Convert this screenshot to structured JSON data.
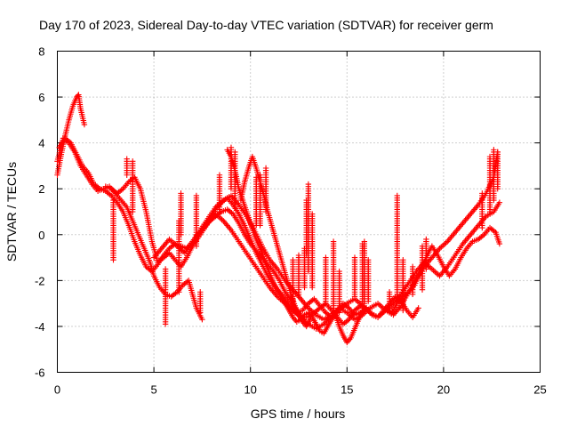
{
  "chart_data": {
    "type": "scatter",
    "title": "Day 170 of 2023, Sidereal Day-to-day VTEC variation (SDTVAR) for receiver germ",
    "xlabel": "GPS time / hours",
    "ylabel": "SDTVAR / TECUs",
    "xlim": [
      0,
      25
    ],
    "ylim": [
      -6,
      8
    ],
    "xticks": [
      0,
      5,
      10,
      15,
      20,
      25
    ],
    "yticks": [
      -6,
      -4,
      -2,
      0,
      2,
      4,
      6,
      8
    ],
    "grid": true,
    "marker": "+",
    "series": [
      {
        "name": "SDTVAR",
        "color": "#ff0000",
        "tracks": [
          {
            "x": [
              0.0,
              0.2,
              0.4,
              0.6,
              0.8,
              1.0,
              1.1,
              1.2,
              1.4
            ],
            "y": [
              2.6,
              3.5,
              4.3,
              5.0,
              5.6,
              6.0,
              6.1,
              5.5,
              4.8
            ]
          },
          {
            "x": [
              0.0,
              0.3,
              0.6,
              0.9,
              1.2,
              1.5,
              1.8,
              2.1,
              2.4,
              2.7,
              3.0,
              3.3,
              3.6,
              3.9,
              4.2,
              4.5,
              4.8,
              5.0,
              5.3,
              5.6,
              5.9,
              6.2,
              6.5,
              6.8,
              7.0,
              7.2,
              7.5
            ],
            "y": [
              3.2,
              4.2,
              4.0,
              3.6,
              3.0,
              2.6,
              2.2,
              1.9,
              2.0,
              2.1,
              1.8,
              1.5,
              1.2,
              0.6,
              0.0,
              -0.6,
              -1.2,
              -1.8,
              -2.3,
              -2.6,
              -2.7,
              -2.5,
              -2.2,
              -2.0,
              -2.6,
              -3.2,
              -3.7
            ]
          },
          {
            "x": [
              0.1,
              0.4,
              0.7,
              1.0,
              1.3,
              1.6,
              1.9,
              2.2,
              2.5,
              2.8,
              3.1,
              3.4,
              3.7,
              4.0,
              4.3,
              4.6,
              4.9,
              5.2,
              5.5,
              5.8,
              6.1,
              6.4,
              6.7,
              7.0,
              7.3,
              7.6,
              7.9,
              8.2,
              8.5,
              8.8,
              9.1,
              9.4,
              9.7,
              10.0,
              10.3,
              10.6,
              10.9,
              11.2,
              11.5,
              11.8,
              12.1,
              12.4,
              12.7,
              13.0,
              13.3,
              13.6,
              13.9,
              14.2,
              14.5,
              14.8,
              15.1,
              15.4,
              15.7,
              16.0
            ],
            "y": [
              3.8,
              4.2,
              4.0,
              3.5,
              3.0,
              2.7,
              2.2,
              2.0,
              1.9,
              1.7,
              1.4,
              1.0,
              0.4,
              -0.3,
              -0.9,
              -1.4,
              -1.6,
              -1.3,
              -0.9,
              -0.6,
              -0.4,
              -0.5,
              -0.6,
              -0.3,
              0.0,
              0.3,
              0.6,
              0.8,
              1.0,
              1.1,
              0.9,
              0.5,
              0.0,
              -0.4,
              -0.7,
              -1.0,
              -1.3,
              -1.6,
              -2.0,
              -2.5,
              -2.9,
              -3.3,
              -3.6,
              -3.6,
              -3.4,
              -3.2,
              -3.0,
              -3.3,
              -3.6,
              -3.9,
              -3.7,
              -3.3,
              -3.1,
              -3.2
            ]
          },
          {
            "x": [
              2.5,
              2.8,
              3.1,
              3.4,
              3.7,
              4.0,
              4.3,
              4.6,
              4.9,
              5.2,
              5.5,
              5.8,
              6.1,
              6.4,
              6.7,
              7.0,
              7.3,
              7.6,
              7.9,
              8.2,
              8.5,
              8.8,
              9.1,
              9.4,
              9.7,
              10.0,
              10.3,
              10.6,
              10.9,
              11.2,
              11.5,
              11.8,
              12.1,
              12.4,
              12.7,
              13.0,
              13.3,
              13.6,
              13.9,
              14.2,
              14.5,
              14.8,
              15.1,
              15.4,
              15.7,
              16.0,
              16.3,
              16.6,
              16.9,
              17.2,
              17.5,
              17.8,
              18.1,
              18.4,
              18.7
            ],
            "y": [
              2.1,
              2.0,
              1.8,
              2.0,
              2.3,
              2.5,
              2.0,
              1.0,
              -0.3,
              -1.2,
              -1.0,
              -0.8,
              -1.1,
              -1.4,
              -1.0,
              -0.5,
              0.0,
              0.3,
              0.7,
              1.1,
              1.4,
              1.6,
              1.3,
              0.9,
              0.4,
              -0.2,
              -0.8,
              -1.3,
              -1.8,
              -2.2,
              -2.5,
              -2.8,
              -3.2,
              -3.4,
              -3.3,
              -3.0,
              -2.8,
              -3.1,
              -3.4,
              -3.6,
              -3.3,
              -3.0,
              -3.2,
              -3.5,
              -3.4,
              -3.2,
              -3.5,
              -3.6,
              -3.3,
              -3.0,
              -2.7,
              -2.9,
              -3.3,
              -3.6,
              -3.2
            ]
          },
          {
            "x": [
              5.0,
              5.4,
              5.8,
              6.2,
              6.6,
              7.0,
              7.4,
              7.8,
              8.2,
              8.6,
              9.0,
              9.4,
              9.8,
              10.2,
              10.6,
              11.0,
              11.4,
              11.8,
              12.2,
              12.6,
              13.0,
              13.4,
              13.8,
              14.2,
              14.6,
              15.0,
              15.4,
              15.8,
              16.2,
              16.6,
              17.0,
              17.4,
              17.8,
              18.2,
              18.6,
              19.0,
              19.4,
              19.8,
              20.2,
              20.6,
              21.0,
              21.4,
              21.8,
              22.2,
              22.6,
              22.8
            ],
            "y": [
              -1.0,
              -0.6,
              -0.2,
              -0.5,
              -0.8,
              -0.3,
              0.2,
              0.7,
              1.2,
              1.5,
              1.7,
              1.3,
              0.8,
              0.2,
              -0.5,
              -1.1,
              -1.5,
              -2.0,
              -2.4,
              -2.8,
              -3.2,
              -3.5,
              -3.7,
              -3.5,
              -3.2,
              -3.4,
              -3.7,
              -3.5,
              -3.2,
              -3.0,
              -3.3,
              -3.5,
              -3.1,
              -2.5,
              -1.9,
              -1.4,
              -1.0,
              -0.6,
              -0.3,
              0.1,
              0.5,
              0.9,
              1.3,
              1.8,
              2.5,
              3.6
            ]
          },
          {
            "x": [
              7.0,
              7.4,
              7.8,
              8.2,
              8.6,
              9.0,
              9.4,
              9.8,
              10.2,
              10.6,
              11.0,
              11.4,
              11.8,
              12.2,
              12.6,
              13.0,
              13.4,
              13.8,
              14.2,
              14.6,
              15.0,
              15.4,
              15.8,
              16.2,
              16.6,
              17.0,
              17.4,
              17.8,
              18.2,
              18.6,
              19.0,
              19.4,
              19.8,
              20.2,
              20.6,
              21.0,
              21.4,
              21.8,
              22.2,
              22.6,
              22.9
            ],
            "y": [
              -0.5,
              0.0,
              0.5,
              0.9,
              0.6,
              0.2,
              -0.3,
              -0.8,
              -1.3,
              -1.8,
              -2.3,
              -2.7,
              -3.0,
              -3.3,
              -3.6,
              -3.9,
              -4.1,
              -3.9,
              -3.6,
              -3.3,
              -3.0,
              -2.8,
              -3.1,
              -3.4,
              -3.6,
              -3.3,
              -3.0,
              -2.6,
              -2.1,
              -1.6,
              -1.2,
              -1.5,
              -1.8,
              -1.4,
              -0.9,
              -0.4,
              0.0,
              0.4,
              0.8,
              1.0,
              1.4
            ]
          },
          {
            "x": [
              8.8,
              9.0,
              9.2,
              9.4,
              9.6,
              9.8,
              10.0,
              10.2,
              10.4,
              10.6,
              10.8,
              11.0,
              11.2,
              11.4,
              11.6,
              11.8,
              12.0,
              12.2,
              12.4,
              12.6,
              12.8,
              13.0,
              13.2,
              13.4,
              13.6,
              13.8,
              14.0,
              14.2,
              14.4,
              14.6,
              14.8,
              15.0,
              15.2,
              15.4,
              15.6,
              15.8,
              16.0
            ],
            "y": [
              3.7,
              3.4,
              2.8,
              2.0,
              1.5,
              1.0,
              0.5,
              0.0,
              -0.4,
              -0.8,
              -1.3,
              -1.7,
              -2.1,
              -2.4,
              -2.7,
              -3.0,
              -3.3,
              -3.6,
              -3.8,
              -3.7,
              -3.5,
              -3.4,
              -3.6,
              -3.9,
              -4.2,
              -4.3,
              -4.0,
              -3.7,
              -3.5,
              -4.0,
              -4.4,
              -4.7,
              -4.5,
              -4.1,
              -3.7,
              -3.4,
              -3.2
            ]
          },
          {
            "x": [
              9.5,
              9.7,
              9.9,
              10.1,
              10.3,
              10.5,
              10.7,
              10.9,
              11.1,
              11.3,
              11.5,
              11.7,
              11.9,
              12.1,
              12.3,
              12.5,
              12.7,
              12.9,
              13.1
            ],
            "y": [
              1.5,
              2.3,
              2.9,
              3.4,
              2.9,
              2.3,
              1.7,
              1.0,
              0.4,
              -0.2,
              -0.8,
              -1.4,
              -2.0,
              -2.6,
              -3.1,
              -3.5,
              -3.8,
              -4.0,
              -3.7
            ]
          },
          {
            "x": [
              17.0,
              17.3,
              17.6,
              17.9,
              18.2,
              18.5,
              18.8,
              19.1,
              19.4,
              19.7,
              20.0,
              20.3,
              20.6,
              20.9,
              21.2,
              21.5,
              21.8,
              22.1,
              22.4,
              22.7,
              22.9
            ],
            "y": [
              -3.2,
              -3.4,
              -3.0,
              -2.7,
              -2.5,
              -2.2,
              -1.6,
              -1.0,
              -0.5,
              -0.9,
              -1.4,
              -1.8,
              -1.5,
              -1.0,
              -0.6,
              -0.3,
              -0.2,
              0.0,
              0.3,
              0.1,
              -0.4
            ]
          }
        ],
        "spikes": [
          {
            "x": 2.9,
            "y0": 1.5,
            "y1": -1.1
          },
          {
            "x": 3.6,
            "y0": 2.6,
            "y1": 3.3
          },
          {
            "x": 3.9,
            "y0": 3.2,
            "y1": 1.0
          },
          {
            "x": 5.6,
            "y0": -1.5,
            "y1": -3.9
          },
          {
            "x": 6.3,
            "y0": -2.5,
            "y1": 0.6
          },
          {
            "x": 6.4,
            "y0": 0.0,
            "y1": 1.8
          },
          {
            "x": 7.2,
            "y0": -0.5,
            "y1": 1.7
          },
          {
            "x": 7.4,
            "y0": -3.4,
            "y1": -2.5
          },
          {
            "x": 8.4,
            "y0": 1.0,
            "y1": 2.6
          },
          {
            "x": 9.0,
            "y0": 2.0,
            "y1": 3.8
          },
          {
            "x": 9.2,
            "y0": 1.2,
            "y1": 3.6
          },
          {
            "x": 10.3,
            "y0": 0.4,
            "y1": 2.5
          },
          {
            "x": 10.5,
            "y0": 0.4,
            "y1": 2.6
          },
          {
            "x": 10.8,
            "y0": 1.0,
            "y1": 2.9
          },
          {
            "x": 12.2,
            "y0": -3.1,
            "y1": -1.1
          },
          {
            "x": 12.5,
            "y0": -2.6,
            "y1": -0.9
          },
          {
            "x": 12.8,
            "y0": -2.3,
            "y1": -0.6
          },
          {
            "x": 12.9,
            "y0": -0.9,
            "y1": 1.5
          },
          {
            "x": 13.0,
            "y0": -1.6,
            "y1": 2.2
          },
          {
            "x": 13.2,
            "y0": -2.3,
            "y1": 0.9
          },
          {
            "x": 13.9,
            "y0": -3.0,
            "y1": -1.0
          },
          {
            "x": 14.3,
            "y0": -3.4,
            "y1": -0.3
          },
          {
            "x": 14.6,
            "y0": -3.4,
            "y1": -1.6
          },
          {
            "x": 15.4,
            "y0": -2.7,
            "y1": -1.0
          },
          {
            "x": 15.8,
            "y0": -3.3,
            "y1": -0.4
          },
          {
            "x": 15.9,
            "y0": -3.0,
            "y1": -0.3
          },
          {
            "x": 16.1,
            "y0": -2.9,
            "y1": -1.1
          },
          {
            "x": 17.2,
            "y0": -3.2,
            "y1": -2.5
          },
          {
            "x": 17.6,
            "y0": -2.9,
            "y1": 1.7
          },
          {
            "x": 17.9,
            "y0": -3.3,
            "y1": -1.1
          },
          {
            "x": 18.4,
            "y0": -2.6,
            "y1": -1.4
          },
          {
            "x": 18.9,
            "y0": -2.4,
            "y1": -0.5
          },
          {
            "x": 19.1,
            "y0": -1.5,
            "y1": -0.2
          },
          {
            "x": 22.0,
            "y0": 0.3,
            "y1": 1.8
          },
          {
            "x": 22.4,
            "y0": 0.9,
            "y1": 3.4
          },
          {
            "x": 22.6,
            "y0": 1.5,
            "y1": 3.7
          },
          {
            "x": 22.8,
            "y0": 2.0,
            "y1": 3.6
          }
        ]
      }
    ]
  }
}
